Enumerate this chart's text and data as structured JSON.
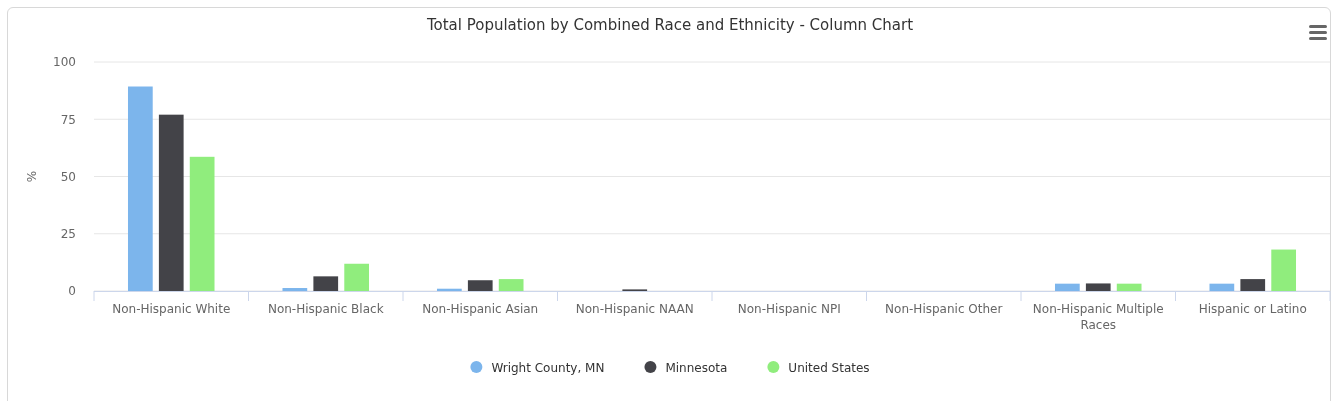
{
  "chart_data": {
    "type": "bar",
    "title": "Total Population by Combined Race and Ethnicity - Column Chart",
    "ylabel": "%",
    "categories": [
      "Non-Hispanic White",
      "Non-Hispanic Black",
      "Non-Hispanic Asian",
      "Non-Hispanic NAAN",
      "Non-Hispanic NPI",
      "Non-Hispanic Other",
      "Non-Hispanic Multiple Races",
      "Hispanic or Latino"
    ],
    "series": [
      {
        "name": "Wright County, MN",
        "color": "#7cb5ec",
        "values": [
          89.3,
          1.3,
          1.0,
          0,
          0,
          0,
          3.2,
          3.2
        ]
      },
      {
        "name": "Minnesota",
        "color": "#434348",
        "values": [
          77.0,
          6.4,
          4.7,
          0.7,
          0,
          0,
          3.3,
          5.2
        ]
      },
      {
        "name": "United States",
        "color": "#90ed7d",
        "values": [
          58.6,
          11.9,
          5.2,
          0,
          0,
          0,
          3.2,
          18.1
        ]
      }
    ],
    "ylim": [
      0,
      100
    ],
    "yticks": [
      0,
      25,
      50,
      75,
      100
    ],
    "grid": "y",
    "legend": "bottom"
  }
}
